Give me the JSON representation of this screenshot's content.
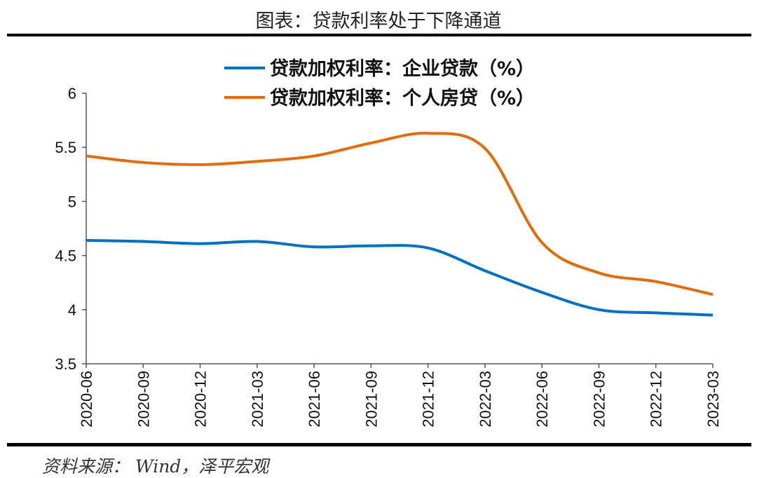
{
  "title": "图表：贷款利率处于下降通道",
  "source": "资料来源： Wind，泽平宏观",
  "chart_data": {
    "type": "line",
    "title": "图表：贷款利率处于下降通道",
    "xlabel": "",
    "ylabel": "",
    "ylim": [
      3.5,
      6
    ],
    "yticks": [
      "3.5",
      "4",
      "4.5",
      "5",
      "5.5",
      "6"
    ],
    "categories": [
      "2020-06",
      "2020-09",
      "2020-12",
      "2021-03",
      "2021-06",
      "2021-09",
      "2021-12",
      "2022-03",
      "2022-06",
      "2022-09",
      "2022-12",
      "2023-03"
    ],
    "legend_position": "top-right",
    "grid": false,
    "series": [
      {
        "name": "贷款加权利率：企业贷款（%）",
        "color": "#0070C0",
        "values": [
          4.64,
          4.63,
          4.61,
          4.63,
          4.58,
          4.59,
          4.57,
          4.36,
          4.16,
          4.0,
          3.97,
          3.95
        ]
      },
      {
        "name": "贷款加权利率：个人房贷（%）",
        "color": "#E36C0A",
        "values": [
          5.42,
          5.36,
          5.34,
          5.37,
          5.42,
          5.54,
          5.63,
          5.49,
          4.62,
          4.34,
          4.26,
          4.14
        ]
      }
    ]
  }
}
